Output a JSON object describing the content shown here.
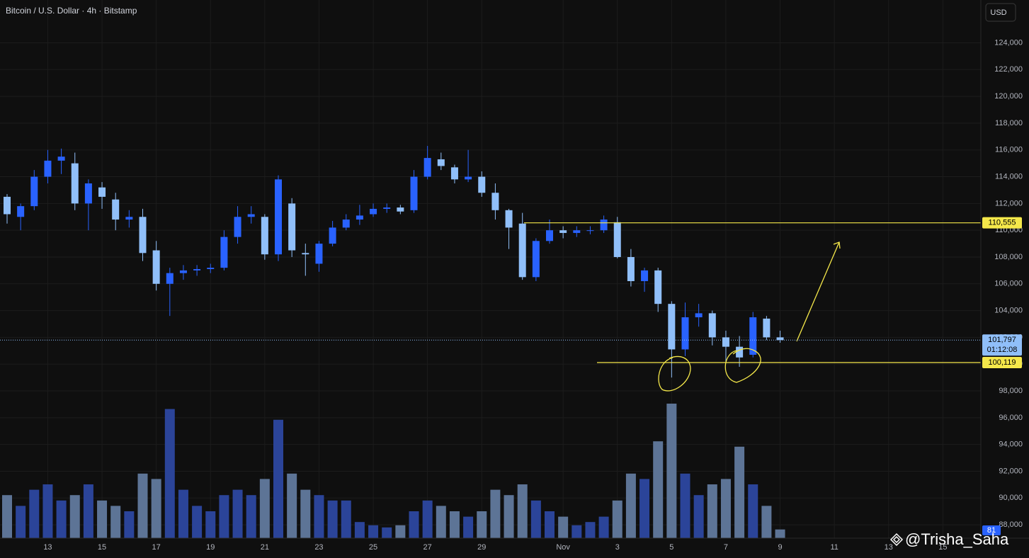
{
  "chart_data": {
    "type": "candlestick",
    "title": "Bitcoin / U.S. Dollar · 4h · Bitstamp",
    "currency": "USD",
    "watermark": "@Trisha_Saha",
    "up_color": "#2962ff",
    "down_color": "#90bff9",
    "volume_up_color": "#2b4499",
    "volume_down_color": "#5d7496",
    "grid": true,
    "categories": [
      null,
      null,
      null,
      "13",
      null,
      null,
      null,
      "15",
      null,
      null,
      null,
      "17",
      null,
      null,
      null,
      "19",
      null,
      null,
      null,
      "21",
      null,
      null,
      null,
      "23",
      null,
      null,
      null,
      "25",
      null,
      null,
      null,
      "27",
      null,
      null,
      null,
      "29",
      null,
      null,
      null,
      null,
      null,
      "Nov",
      null,
      null,
      null,
      "3",
      null,
      null,
      null,
      "5",
      null,
      null,
      null,
      "7",
      null,
      null,
      null,
      "9",
      null,
      null,
      null,
      "11",
      null,
      null,
      null,
      "13",
      null,
      null,
      null,
      "15"
    ],
    "open": [
      112500,
      111000,
      111800,
      114000,
      115200,
      115000,
      112000,
      113200,
      112300,
      110800,
      111000,
      108500,
      106000,
      106800,
      107000,
      107100,
      107200,
      109500,
      111000,
      111000,
      108200,
      112000,
      108300,
      107500,
      109000,
      110200,
      110800,
      111200,
      111600,
      111700,
      111500,
      114000,
      115300,
      114700,
      113800,
      114000,
      112800,
      111500,
      110500,
      106500,
      109200,
      110000,
      109800,
      110000,
      110000,
      110600,
      108000,
      106200,
      107000,
      104500,
      101100,
      103500,
      103800,
      102000,
      101300,
      100700,
      103400,
      102000,
      null,
      null,
      null,
      null,
      null,
      null,
      null,
      null,
      null,
      null,
      null,
      null
    ],
    "high": [
      112700,
      112000,
      114500,
      116000,
      116100,
      115800,
      113800,
      113600,
      112800,
      111500,
      111600,
      109200,
      107200,
      107400,
      107400,
      107500,
      110000,
      111800,
      111800,
      111200,
      114100,
      112400,
      109000,
      109200,
      110700,
      111200,
      111900,
      112000,
      112000,
      111900,
      114500,
      116300,
      115800,
      114900,
      116000,
      114400,
      113500,
      111600,
      111300,
      109400,
      110800,
      110300,
      110300,
      110300,
      111100,
      111000,
      108600,
      107200,
      107200,
      104700,
      104600,
      104500,
      104000,
      102500,
      102100,
      103900,
      103600,
      102500,
      null,
      null,
      null,
      null,
      null,
      null,
      null,
      null,
      null,
      null,
      null,
      null
    ],
    "low": [
      110500,
      110000,
      111500,
      113500,
      114200,
      111500,
      110000,
      111600,
      110000,
      110200,
      107700,
      105500,
      103600,
      106300,
      106600,
      106800,
      107000,
      109000,
      110500,
      107800,
      107700,
      108000,
      106600,
      106900,
      108800,
      110000,
      110400,
      111000,
      111300,
      111200,
      111300,
      113800,
      114500,
      113500,
      113600,
      112500,
      110800,
      108600,
      106300,
      106200,
      109000,
      109400,
      109500,
      109700,
      109800,
      107900,
      105800,
      105400,
      103900,
      99000,
      100600,
      102800,
      101400,
      100200,
      99800,
      100500,
      101800,
      101600,
      null,
      null,
      null,
      null,
      null,
      null,
      null,
      null,
      null,
      null,
      null,
      null
    ],
    "close": [
      111200,
      111800,
      114000,
      115200,
      115500,
      112000,
      113500,
      112500,
      110800,
      111000,
      108300,
      106000,
      106800,
      107000,
      107100,
      107200,
      109500,
      111000,
      111200,
      108200,
      113800,
      108500,
      108200,
      109000,
      110200,
      110800,
      111100,
      111600,
      111700,
      111400,
      114000,
      115400,
      114800,
      113800,
      114000,
      112800,
      111500,
      110200,
      106500,
      109200,
      110000,
      109800,
      110000,
      110000,
      110800,
      108000,
      106200,
      107000,
      104500,
      101100,
      103500,
      103800,
      102000,
      101300,
      100500,
      103500,
      102000,
      101797,
      null,
      null,
      null,
      null,
      null,
      null,
      null,
      null,
      null,
      null,
      null,
      null
    ],
    "volume": [
      400,
      300,
      450,
      500,
      350,
      400,
      500,
      350,
      300,
      250,
      600,
      550,
      1200,
      450,
      300,
      250,
      400,
      450,
      400,
      550,
      1100,
      600,
      450,
      400,
      350,
      350,
      150,
      120,
      100,
      120,
      250,
      350,
      300,
      250,
      200,
      250,
      450,
      400,
      500,
      350,
      250,
      200,
      120,
      150,
      200,
      350,
      600,
      550,
      900,
      1250,
      600,
      400,
      500,
      550,
      850,
      500,
      300,
      81,
      null,
      null,
      null,
      null,
      null,
      null,
      null,
      null,
      null,
      null,
      null,
      null
    ],
    "volume_label": "81",
    "ylim": [
      87000,
      127200
    ],
    "yticks": [
      {
        "value": 88000,
        "label": "88,000"
      },
      {
        "value": 90000,
        "label": "90,000"
      },
      {
        "value": 92000,
        "label": "92,000"
      },
      {
        "value": 94000,
        "label": "94,000"
      },
      {
        "value": 96000,
        "label": "96,000"
      },
      {
        "value": 98000,
        "label": "98,000"
      },
      {
        "value": 100000,
        "label": "100,000"
      },
      {
        "value": 102000,
        "label": "102,000"
      },
      {
        "value": 104000,
        "label": "104,000"
      },
      {
        "value": 106000,
        "label": "106,000"
      },
      {
        "value": 108000,
        "label": "108,000"
      },
      {
        "value": 110000,
        "label": "110,000"
      },
      {
        "value": 112000,
        "label": "112,000"
      },
      {
        "value": 114000,
        "label": "114,000"
      },
      {
        "value": 116000,
        "label": "116,000"
      },
      {
        "value": 118000,
        "label": "118,000"
      },
      {
        "value": 120000,
        "label": "120,000"
      },
      {
        "value": 122000,
        "label": "122,000"
      },
      {
        "value": 124000,
        "label": "124,000"
      }
    ],
    "levels": [
      {
        "value": 110555,
        "label": "110,555"
      },
      {
        "value": 100119,
        "label": "100,119"
      }
    ],
    "level_color": "#f5e84a",
    "last_price": {
      "value": 101797,
      "label": "101,797"
    },
    "countdown": "01:12:08"
  }
}
